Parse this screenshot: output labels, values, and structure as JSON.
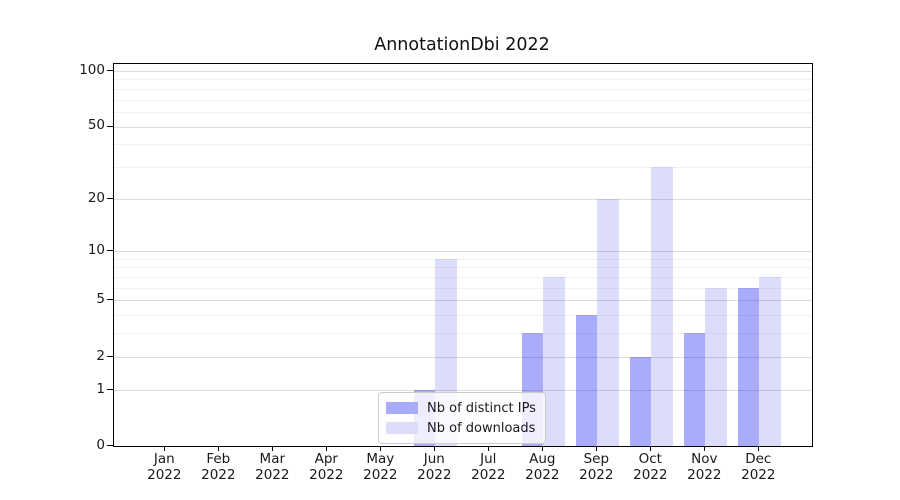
{
  "chart_data": {
    "type": "bar",
    "title": "AnnotationDbi 2022",
    "categories": [
      "Jan",
      "Feb",
      "Mar",
      "Apr",
      "May",
      "Jun",
      "Jul",
      "Aug",
      "Sep",
      "Oct",
      "Nov",
      "Dec"
    ],
    "x_tick_second_line": "2022",
    "series": [
      {
        "name": "Nb of distinct IPs",
        "color": "#a9abfb",
        "values": [
          0,
          0,
          0,
          0,
          0,
          1,
          0,
          3,
          4,
          2,
          3,
          6
        ]
      },
      {
        "name": "Nb of downloads",
        "color": "#dcddfb",
        "values": [
          0,
          0,
          0,
          0,
          0,
          9,
          0,
          7,
          20,
          30,
          6,
          7
        ]
      }
    ],
    "yscale": "log1p",
    "ylim": [
      0,
      109
    ],
    "y_major_ticks": [
      0,
      1,
      2,
      5,
      10,
      20,
      50,
      100
    ],
    "y_minor_gridlines": [
      3,
      4,
      6,
      7,
      8,
      9,
      30,
      40,
      60,
      70,
      80,
      90
    ],
    "grid": true,
    "legend_position": "inside-lower-center"
  },
  "colors": {
    "background": "#ffffff",
    "spine": "#000000",
    "grid_major": "rgba(0,0,0,0.13)",
    "grid_minor": "rgba(0,0,0,0.05)",
    "text": "#1a1a1a",
    "legend_border": "#cccccc",
    "legend_background": "rgba(255,255,255,0.8)"
  }
}
